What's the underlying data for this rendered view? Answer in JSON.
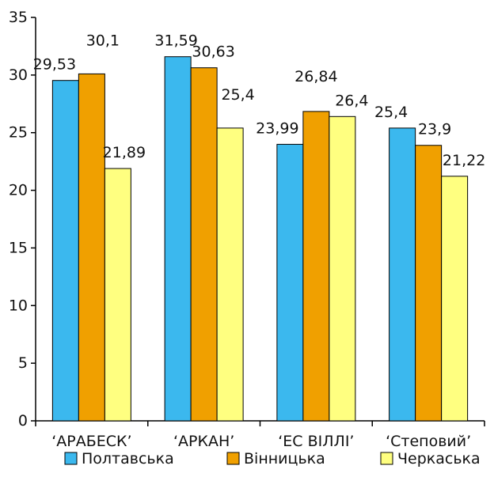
{
  "chart_data": {
    "type": "bar",
    "categories": [
      "‘АРАБЕСК’",
      "‘АРКАН’",
      "‘ЕС ВІЛЛІ’",
      "‘Степовий’"
    ],
    "series": [
      {
        "name": "Полтавська",
        "values": [
          29.53,
          31.59,
          23.99,
          25.4
        ],
        "labels": [
          "29,53",
          "31,59",
          "23,99",
          "25,4"
        ],
        "color": "#3bb8ee"
      },
      {
        "name": "Вінницька",
        "values": [
          30.1,
          30.63,
          26.84,
          23.9
        ],
        "labels": [
          "30,1",
          "30,63",
          "26,84",
          "23,9"
        ],
        "color": "#f0a000"
      },
      {
        "name": "Черкаська",
        "values": [
          21.89,
          25.4,
          26.4,
          21.22
        ],
        "labels": [
          "21,89",
          "25,4",
          "26,4",
          "21,22"
        ],
        "color": "#ffff80"
      }
    ],
    "ylim": [
      0,
      35
    ],
    "yticks": [
      0,
      5,
      10,
      15,
      20,
      25,
      30,
      35
    ],
    "grid": false,
    "legend_position": "bottom"
  }
}
